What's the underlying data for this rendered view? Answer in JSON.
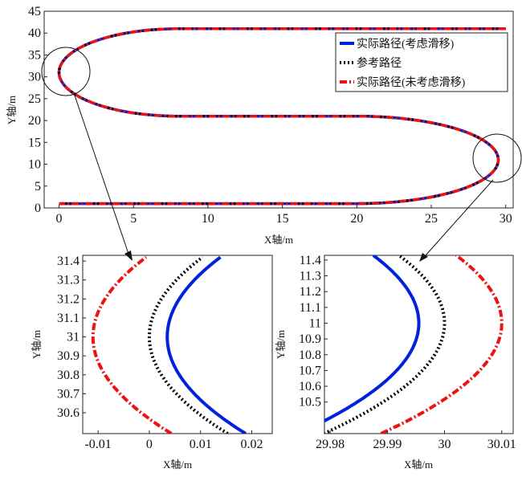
{
  "chart_data": [
    {
      "type": "line",
      "xlabel": "X轴/m",
      "ylabel": "Y轴/m",
      "xlim": [
        -1,
        30.5
      ],
      "ylim": [
        0,
        45
      ],
      "xticks": [
        "0",
        "5",
        "10",
        "15",
        "20",
        "25",
        "30"
      ],
      "yticks": [
        "0",
        "5",
        "10",
        "15",
        "20",
        "25",
        "30",
        "35",
        "40",
        "45"
      ],
      "legend_position": "top-right",
      "series": [
        {
          "name": "实际路径(考虑滑移)",
          "color": "#0022dd",
          "style": "solid",
          "offset": 0.0035
        },
        {
          "name": "参考路径",
          "color": "#000000",
          "style": "dotted",
          "offset": 0
        },
        {
          "name": "实际路径(未考虑滑移)",
          "color": "#ee1111",
          "style": "dashdot",
          "offset": -0.011
        }
      ],
      "path_description": {
        "start_x": 0,
        "end_x": 30,
        "rows_y": [
          1,
          21,
          41
        ],
        "left_turn_center": [
          0,
          31
        ],
        "right_turn_center": [
          30,
          11
        ],
        "turn_radius": 10
      },
      "annotations": [
        {
          "label": "circle-left",
          "at": [
            1.0,
            31
          ]
        },
        {
          "label": "circle-right",
          "at": [
            29.0,
            11
          ]
        }
      ]
    },
    {
      "type": "line",
      "xlabel": "X轴/m",
      "ylabel": "Y轴/m",
      "xlim": [
        -0.013,
        0.024
      ],
      "ylim": [
        30.49,
        31.43
      ],
      "xticks": [
        "-0.01",
        "0",
        "0.01",
        "0.02"
      ],
      "yticks": [
        "30.6",
        "30.7",
        "30.8",
        "30.9",
        "31",
        "31.1",
        "31.2",
        "31.3",
        "31.4"
      ],
      "series": [
        {
          "name": "实际路径(考虑滑移)",
          "x_at_31": 0.0035
        },
        {
          "name": "参考路径",
          "x_at_31": 0
        },
        {
          "name": "实际路径(未考虑滑移)",
          "x_at_31": -0.011
        }
      ]
    },
    {
      "type": "line",
      "xlabel": "X轴/m",
      "ylabel": "Y轴/m",
      "xlim": [
        29.979,
        30.012
      ],
      "ylim": [
        10.3,
        11.43
      ],
      "xticks": [
        "29.98",
        "29.99",
        "30",
        "30.01"
      ],
      "yticks": [
        "10.5",
        "10.6",
        "10.7",
        "10.8",
        "10.9",
        "11",
        "11.1",
        "11.2",
        "11.3",
        "11.4"
      ],
      "series": [
        {
          "name": "实际路径(考虑滑移)",
          "x_at_11": 29.9955
        },
        {
          "name": "参考路径",
          "x_at_11": 30
        },
        {
          "name": "实际路径(未考虑滑移)",
          "x_at_11": 30.01
        }
      ]
    }
  ]
}
